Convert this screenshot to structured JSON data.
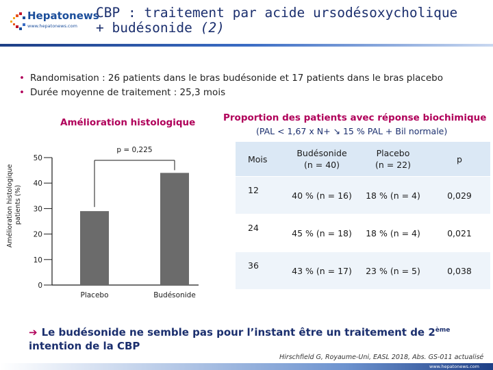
{
  "header": {
    "logo_text": "Hepatonews",
    "logo_url": "www.hepatonews.com",
    "title_line1": "CBP : traitement par acide ursodésoxycholique",
    "title_line2": "+ budésonide",
    "title_suffix": "(2)"
  },
  "bullets": [
    "Randomisation : 26 patients dans le bras budésonide et 17 patients dans le bras placebo",
    "Durée moyenne de traitement : 25,3 mois"
  ],
  "left_section": {
    "title": "Amélioration histologique"
  },
  "right_section": {
    "title": "Proportion des patients avec réponse biochimique",
    "subtitle": "(PAL < 1,67 x N+ ↘ 15 % PAL + Bil normale)"
  },
  "chart_data": {
    "type": "bar",
    "categories": [
      "Placebo",
      "Budésonide"
    ],
    "values": [
      29,
      44
    ],
    "ylabel": "Amélioration histologique patients (%)",
    "ylim": [
      0,
      50
    ],
    "yticks": [
      "0",
      "10",
      "20",
      "30",
      "40",
      "50"
    ],
    "bar_color": "#6b6b6b",
    "annotation": "p = 0,225"
  },
  "table": {
    "headers": [
      "Mois",
      "Budésonide\n(n = 40)",
      "Placebo\n(n = 22)",
      "p"
    ],
    "rows": [
      [
        "12",
        "40 % (n = 16)",
        "18 % (n = 4)",
        "0,029"
      ],
      [
        "24",
        "45 % (n = 18)",
        "18 % (n = 4)",
        "0,021"
      ],
      [
        "36",
        "43 % (n = 17)",
        "23 % (n = 5)",
        "0,038"
      ]
    ]
  },
  "conclusion": {
    "text": "Le budésonide ne semble pas pour l’instant être un traitement de 2",
    "superscript": "ème",
    "line2": "intention de la CBP"
  },
  "reference": "Hirschfield G, Royaume-Uni, EASL 2018, Abs. GS-011 actualisé",
  "footer_url": "www.hepatonews.com",
  "colors": {
    "accent": "#b0005a",
    "navy": "#1b2f6e",
    "table_head": "#dbe8f5",
    "table_row": "#eef4fa"
  }
}
